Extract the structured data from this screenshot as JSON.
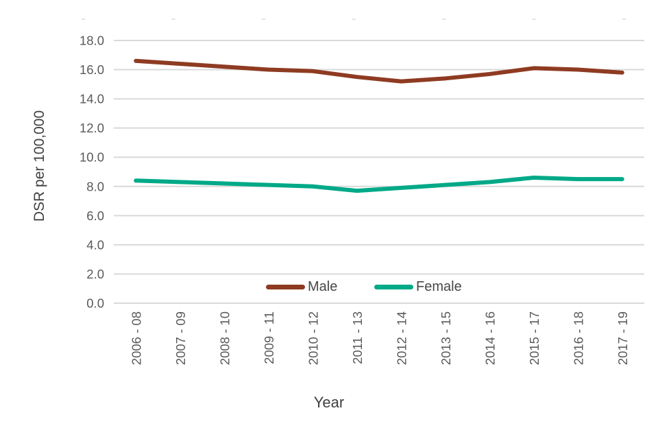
{
  "colors": {
    "background": "#FFFFFF",
    "gridline": "#D9D9D9",
    "top_tick": "#E2E2E2",
    "tick_label": "#595959",
    "axis_title": "#404040",
    "legend_label": "#474747"
  },
  "chart_data": {
    "type": "line",
    "title": "",
    "xlabel": "Year",
    "ylabel": "DSR per 100,000",
    "categories": [
      "2006 - 08",
      "2007 - 09",
      "2008 - 10",
      "2009 - 11",
      "2010 - 12",
      "2011 - 13",
      "2012 - 14",
      "2013 - 15",
      "2014 - 16",
      "2015 - 17",
      "2016 - 18",
      "2017 - 19"
    ],
    "series": [
      {
        "name": "Male",
        "color": "#8E3B22",
        "values": [
          16.6,
          16.4,
          16.2,
          16.0,
          15.9,
          15.5,
          15.2,
          15.4,
          15.7,
          16.1,
          16.0,
          15.8
        ]
      },
      {
        "name": "Female",
        "color": "#00A987",
        "values": [
          8.4,
          8.3,
          8.2,
          8.1,
          8.0,
          7.7,
          7.9,
          8.1,
          8.3,
          8.6,
          8.5,
          8.5
        ]
      }
    ],
    "ylim": [
      0,
      18
    ],
    "ytick_step": 2,
    "ytick_labels": [
      "0.0",
      "2.0",
      "4.0",
      "6.0",
      "8.0",
      "10.0",
      "12.0",
      "14.0",
      "16.0",
      "18.0"
    ],
    "grid": true,
    "legend_position": "bottom-inside"
  }
}
